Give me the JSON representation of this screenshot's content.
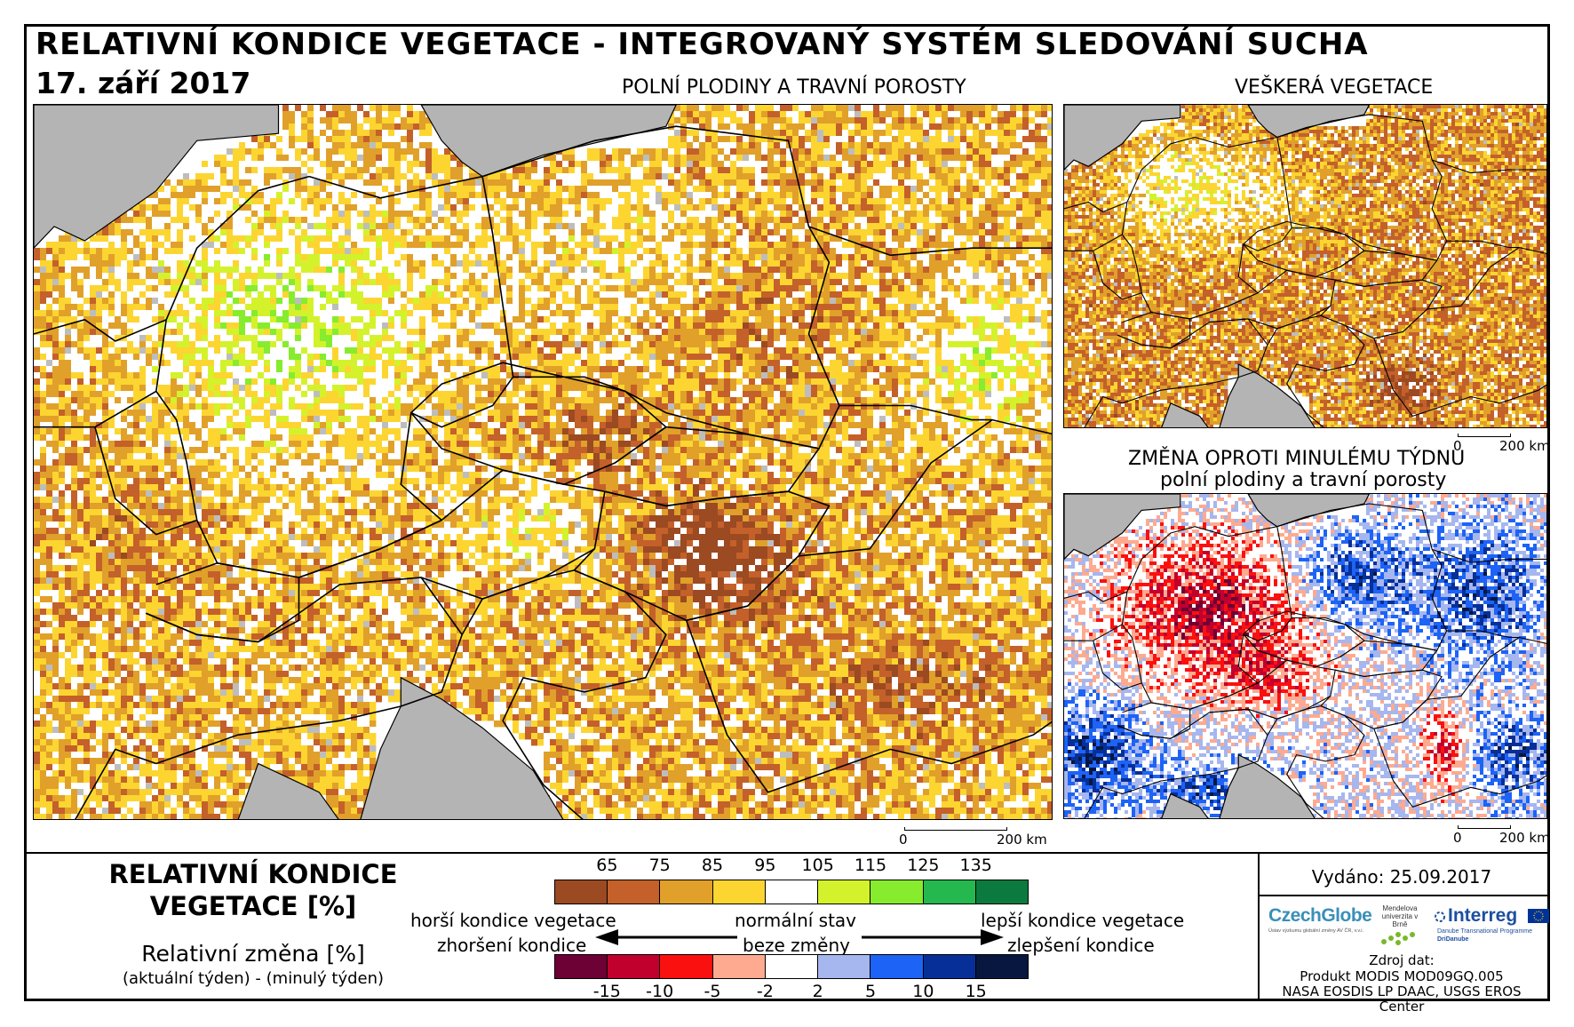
{
  "header": {
    "title": "RELATIVNÍ KONDICE VEGETACE - INTEGROVANÝ SYSTÉM SLEDOVÁNÍ SUCHA",
    "date": "17. září 2017"
  },
  "panels": {
    "main_title": "POLNÍ PLODINY A TRAVNÍ POROSTY",
    "all_veg_title": "VEŠKERÁ VEGETACE",
    "change_title_1": "ZMĚNA OPROTI MINULÉMU TÝDNU",
    "change_title_2": "polní plodiny a travní porosty"
  },
  "scalebar": {
    "zero": "0",
    "end": "200 km"
  },
  "legend": {
    "title": "RELATIVNÍ KONDICE VEGETACE [%]",
    "change_label": "Relativní změna [%]",
    "change_sub": "(aktuální týden) - (minulý týden)",
    "condition_ticks": [
      "65",
      "75",
      "85",
      "95",
      "105",
      "115",
      "125",
      "135"
    ],
    "condition_colors": [
      "#9b4a22",
      "#c4602a",
      "#e0a02a",
      "#fcd531",
      "#ffffff",
      "#d4f22c",
      "#86ec2d",
      "#24b84f",
      "#0b7a3e"
    ],
    "change_ticks": [
      "-15",
      "-10",
      "-5",
      "-2",
      "2",
      "5",
      "10",
      "15"
    ],
    "change_colors": [
      "#6d0034",
      "#c2002e",
      "#fb1010",
      "#fdaa90",
      "#ffffff",
      "#a6b6ee",
      "#1d63f6",
      "#062f98",
      "#071740"
    ],
    "worse": "horší kondice vegetace",
    "normal": "normální stav",
    "better": "lepší kondice vegetace",
    "worsening": "zhoršení kondice",
    "no_change": "beze změny",
    "improving": "zlepšení kondice"
  },
  "footer": {
    "issued": "Vydáno: 25.09.2017",
    "source_label": "Zdroj dat:",
    "source_1": "Produkt MODIS MOD09GQ.005",
    "source_2": "NASA EOSDIS LP DAAC, USGS EROS Center",
    "logo_czechglobe": "CzechGlobe",
    "logo_czechglobe_sub": "Ústav výzkumu globální změny AV ČR, v.v.i.",
    "logo_mendel": "Mendelova univerzita v Brně",
    "logo_interreg": "Interreg",
    "logo_interreg_sub1": "Danube Transnational Programme",
    "logo_interreg_sub2": "DriDanube"
  },
  "colors": {
    "sea": "#b4b4b4",
    "border": "#000000"
  }
}
